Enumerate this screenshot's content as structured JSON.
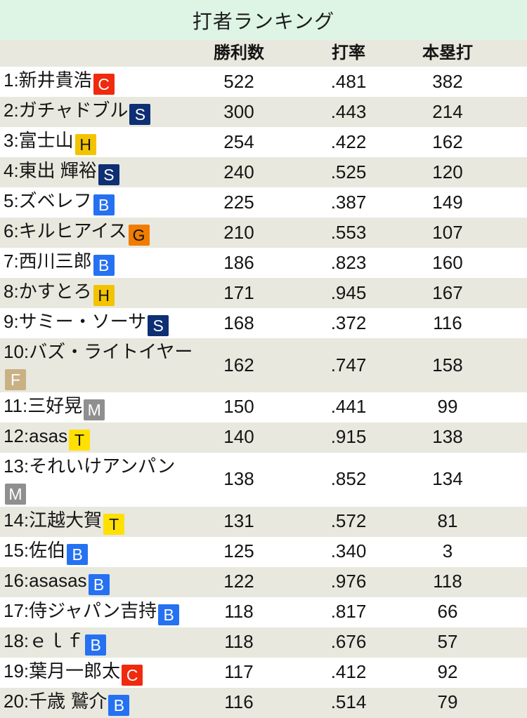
{
  "title": "打者ランキング",
  "columns": [
    "勝利数",
    "打率",
    "本塁打"
  ],
  "colors": {
    "title_bar_bg": "#def4e4",
    "stripe_bg": "#e8e8de",
    "text": "#151515"
  },
  "teams": {
    "C": {
      "bg": "#f02a0d",
      "fg": "#ffffff"
    },
    "S": {
      "bg": "#0e2f74",
      "fg": "#ffffff"
    },
    "H": {
      "bg": "#f3c300",
      "fg": "#141414"
    },
    "B": {
      "bg": "#2571f2",
      "fg": "#ffffff"
    },
    "G": {
      "bg": "#f07c00",
      "fg": "#141414"
    },
    "F": {
      "bg": "#c9b184",
      "fg": "#ffffff"
    },
    "M": {
      "bg": "#8f8f8f",
      "fg": "#ffffff"
    },
    "T": {
      "bg": "#ffe000",
      "fg": "#141414"
    }
  },
  "rows": [
    {
      "label": "1:新井貴浩",
      "team": "C",
      "wins": "522",
      "avg": ".481",
      "hr": "382"
    },
    {
      "label": "2:ガチャドブル",
      "team": "S",
      "wins": "300",
      "avg": ".443",
      "hr": "214"
    },
    {
      "label": "3:富士山",
      "team": "H",
      "wins": "254",
      "avg": ".422",
      "hr": "162"
    },
    {
      "label": "4:東出 輝裕",
      "team": "S",
      "wins": "240",
      "avg": ".525",
      "hr": "120"
    },
    {
      "label": "5:ズベレフ",
      "team": "B",
      "wins": "225",
      "avg": ".387",
      "hr": "149"
    },
    {
      "label": "6:キルヒアイス",
      "team": "G",
      "wins": "210",
      "avg": ".553",
      "hr": "107"
    },
    {
      "label": "7:西川三郎",
      "team": "B",
      "wins": "186",
      "avg": ".823",
      "hr": "160"
    },
    {
      "label": "8:かすとろ",
      "team": "H",
      "wins": "171",
      "avg": ".945",
      "hr": "167"
    },
    {
      "label": "9:サミー・ソーサ",
      "team": "S",
      "wins": "168",
      "avg": ".372",
      "hr": "116"
    },
    {
      "label": "10:バズ・ライトイヤー",
      "team": "F",
      "wins": "162",
      "avg": ".747",
      "hr": "158"
    },
    {
      "label": "11:三好晃",
      "team": "M",
      "wins": "150",
      "avg": ".441",
      "hr": "99"
    },
    {
      "label": "12:asas",
      "team": "T",
      "wins": "140",
      "avg": ".915",
      "hr": "138"
    },
    {
      "label": "13:それいけアンパン",
      "team": "M",
      "wins": "138",
      "avg": ".852",
      "hr": "134"
    },
    {
      "label": "14:江越大賀",
      "team": "T",
      "wins": "131",
      "avg": ".572",
      "hr": "81"
    },
    {
      "label": "15:佐伯",
      "team": "B",
      "wins": "125",
      "avg": ".340",
      "hr": "3"
    },
    {
      "label": "16:asasas",
      "team": "B",
      "wins": "122",
      "avg": ".976",
      "hr": "118"
    },
    {
      "label": "17:侍ジャパン吉持",
      "team": "B",
      "wins": "118",
      "avg": ".817",
      "hr": "66"
    },
    {
      "label": "18:ｅｌｆ",
      "team": "B",
      "wins": "118",
      "avg": ".676",
      "hr": "57"
    },
    {
      "label": "19:葉月一郎太",
      "team": "C",
      "wins": "117",
      "avg": ".412",
      "hr": "92"
    },
    {
      "label": "20:千歳 鷲介",
      "team": "B",
      "wins": "116",
      "avg": ".514",
      "hr": "79"
    }
  ]
}
